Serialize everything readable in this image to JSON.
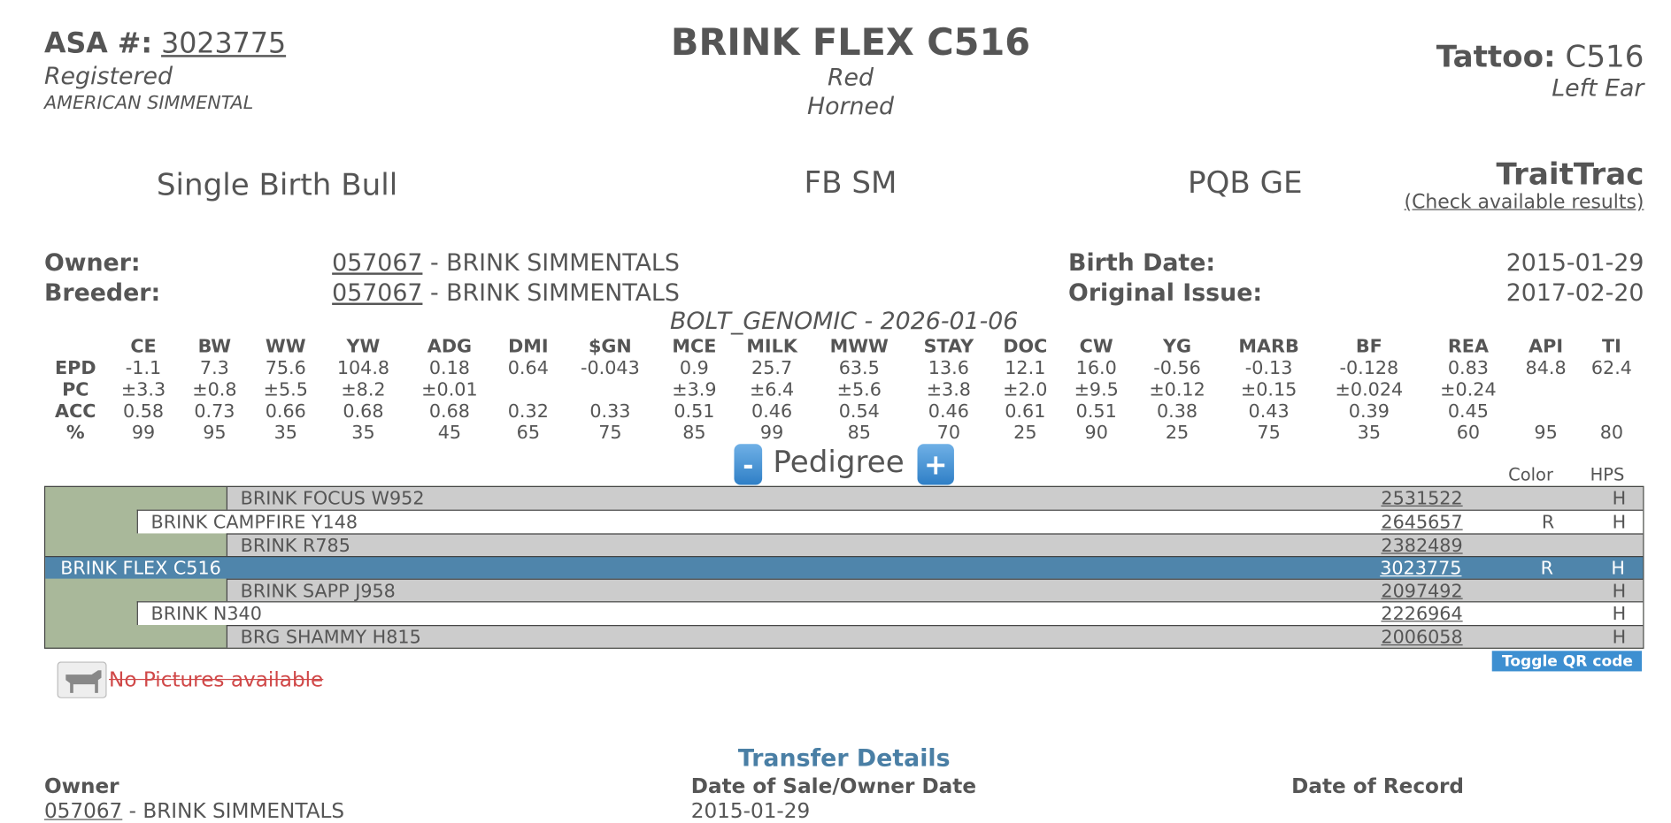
{
  "header": {
    "asa_label": "ASA #:",
    "asa_number": "3023775",
    "status": "Registered",
    "breed": "AMERICAN SIMMENTAL",
    "name": "BRINK FLEX C516",
    "color": "Red",
    "horn": "Horned",
    "tattoo_label": "Tattoo:",
    "tattoo": "C516",
    "tattoo_location": "Left Ear"
  },
  "info": {
    "birth_type": "Single Birth Bull",
    "breed_code": "FB SM",
    "genomic": "PQB GE",
    "traittrac": "TraitTrac",
    "traittrac_link": "(Check available results)"
  },
  "owner": {
    "owner_label": "Owner:",
    "owner_id": "057067",
    "owner_name": "- BRINK SIMMENTALS",
    "breeder_label": "Breeder:",
    "breeder_id": "057067",
    "breeder_name": "- BRINK SIMMENTALS",
    "birth_label": "Birth Date:",
    "birth_date": "2015-01-29",
    "issue_label": "Original Issue:",
    "issue_date": "2017-02-20"
  },
  "epd": {
    "title": "BOLT_GENOMIC - 2026-01-06",
    "columns": [
      "CE",
      "BW",
      "WW",
      "YW",
      "ADG",
      "DMI",
      "$GN",
      "MCE",
      "MILK",
      "MWW",
      "STAY",
      "DOC",
      "CW",
      "YG",
      "MARB",
      "BF",
      "REA",
      "API",
      "TI"
    ],
    "rows": [
      {
        "label": "EPD",
        "values": [
          "-1.1",
          "7.3",
          "75.6",
          "104.8",
          "0.18",
          "0.64",
          "-0.043",
          "0.9",
          "25.7",
          "63.5",
          "13.6",
          "12.1",
          "16.0",
          "-0.56",
          "-0.13",
          "-0.128",
          "0.83",
          "84.8",
          "62.4"
        ]
      },
      {
        "label": "PC",
        "values": [
          "±3.3",
          "±0.8",
          "±5.5",
          "±8.2",
          "±0.01",
          null,
          null,
          "±3.9",
          "±6.4",
          "±5.6",
          "±3.8",
          "±2.0",
          "±9.5",
          "±0.12",
          "±0.15",
          "±0.024",
          "±0.24",
          null,
          null
        ]
      },
      {
        "label": "ACC",
        "values": [
          "0.58",
          "0.73",
          "0.66",
          "0.68",
          "0.68",
          "0.32",
          "0.33",
          "0.51",
          "0.46",
          "0.54",
          "0.46",
          "0.61",
          "0.51",
          "0.38",
          "0.43",
          "0.39",
          "0.45",
          null,
          null
        ]
      },
      {
        "label": "%",
        "values": [
          "99",
          "95",
          "35",
          "35",
          "45",
          "65",
          "75",
          "85",
          "99",
          "85",
          "70",
          "25",
          "90",
          "25",
          "75",
          "35",
          "60",
          "95",
          "80"
        ]
      }
    ]
  },
  "pedigree": {
    "title": "Pedigree",
    "minus": "-",
    "plus": "+",
    "color_header": "Color",
    "hps_header": "HPS",
    "rows": [
      {
        "name": "BRINK FOCUS W952",
        "reg": "2531522",
        "color": null,
        "hps": "H"
      },
      {
        "name": "BRINK CAMPFIRE Y148",
        "reg": "2645657",
        "color": "R",
        "hps": "H"
      },
      {
        "name": "BRINK R785",
        "reg": "2382489",
        "color": null,
        "hps": null
      },
      {
        "name": "BRINK FLEX C516",
        "reg": "3023775",
        "color": "R",
        "hps": "H"
      },
      {
        "name": "BRINK SAPP J958",
        "reg": "2097492",
        "color": null,
        "hps": "H"
      },
      {
        "name": "BRINK N340",
        "reg": "2226964",
        "color": null,
        "hps": "H"
      },
      {
        "name": "BRG SHAMMY H815",
        "reg": "2006058",
        "color": null,
        "hps": "H"
      }
    ]
  },
  "pictures": {
    "text": "No Pictures available",
    "qr_button": "Toggle QR code"
  },
  "transfer": {
    "title": "Transfer Details",
    "headers": [
      "Owner",
      "Date of Sale/Owner Date",
      "Date of Record"
    ],
    "rows": [
      {
        "owner_id": "057067",
        "owner_name": "- BRINK SIMMENTALS",
        "sale_date": "2015-01-29",
        "record_date": null
      }
    ]
  }
}
